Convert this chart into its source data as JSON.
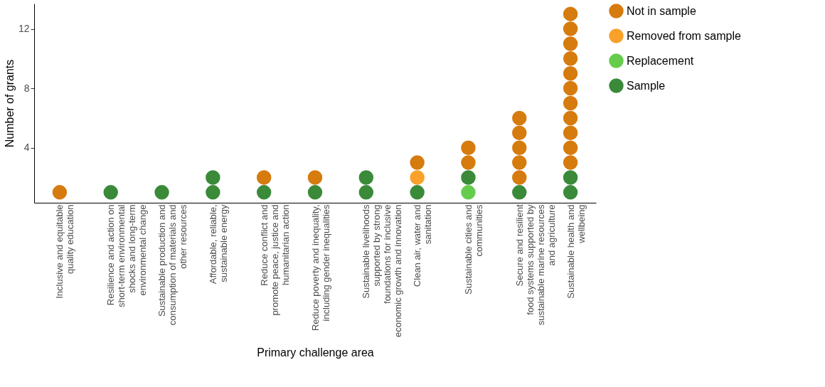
{
  "chart_data": {
    "type": "scatter",
    "xlabel": "Primary challenge area",
    "ylabel": "Number of grants",
    "categories": [
      "Inclusive and equitable\nquality education",
      "Resilience and action on\nshort-term environmental\nshocks and long-term\nenvironmental change",
      "Sustainable production and\nconsumption of materials and\nother resources",
      "Affordable, reliable,\nsustainable energy",
      "Reduce conflict and\npromote peace, justice and\nhumanitarian action",
      "Reduce poverty and inequality,\nincluding gender inequalities",
      "Sustainable livelihoods\nsupported by strong\nfoundations for inclusive\neconomic growth and innovation",
      "Clean air, water and\nsanitation",
      "Sustainable cities and\ncommunities",
      "Secure and resilient\nfood systems supported by\nsustainable marine resources\nand agriculture",
      "Sustainable health and\nwellbeing"
    ],
    "series": [
      {
        "name": "Not in sample",
        "color": "#d67b0e",
        "x": [
          "Inclusive and equitable\nquality education",
          "Reduce conflict and\npromote peace, justice and\nhumanitarian action",
          "Reduce poverty and inequality,\nincluding gender inequalities",
          "Clean air, water and\nsanitation",
          "Sustainable cities and\ncommunities",
          "Sustainable cities and\ncommunities",
          "Secure and resilient\nfood systems supported by\nsustainable marine resources\nand agriculture",
          "Secure and resilient\nfood systems supported by\nsustainable marine resources\nand agriculture",
          "Secure and resilient\nfood systems supported by\nsustainable marine resources\nand agriculture",
          "Secure and resilient\nfood systems supported by\nsustainable marine resources\nand agriculture",
          "Secure and resilient\nfood systems supported by\nsustainable marine resources\nand agriculture",
          "Sustainable health and\nwellbeing",
          "Sustainable health and\nwellbeing",
          "Sustainable health and\nwellbeing",
          "Sustainable health and\nwellbeing",
          "Sustainable health and\nwellbeing",
          "Sustainable health and\nwellbeing",
          "Sustainable health and\nwellbeing",
          "Sustainable health and\nwellbeing",
          "Sustainable health and\nwellbeing",
          "Sustainable health and\nwellbeing",
          "Sustainable health and\nwellbeing"
        ],
        "values": [
          1,
          2,
          2,
          3,
          3,
          4,
          2,
          3,
          4,
          5,
          6,
          3,
          4,
          5,
          6,
          7,
          8,
          9,
          10,
          11,
          12,
          13
        ]
      },
      {
        "name": "Removed from sample",
        "color": "#f9a12b",
        "x": [
          "Clean air, water and\nsanitation"
        ],
        "values": [
          2
        ]
      },
      {
        "name": "Replacement",
        "color": "#66cc4c",
        "x": [
          "Sustainable cities and\ncommunities"
        ],
        "values": [
          1
        ]
      },
      {
        "name": "Sample",
        "color": "#3a8a3a",
        "x": [
          "Resilience and action on\nshort-term environmental\nshocks and long-term\nenvironmental change",
          "Sustainable production and\nconsumption of materials and\nother resources",
          "Affordable, reliable,\nsustainable energy",
          "Affordable, reliable,\nsustainable energy",
          "Reduce conflict and\npromote peace, justice and\nhumanitarian action",
          "Reduce poverty and inequality,\nincluding gender inequalities",
          "Sustainable livelihoods\nsupported by strong\nfoundations for inclusive\neconomic growth and innovation",
          "Sustainable livelihoods\nsupported by strong\nfoundations for inclusive\neconomic growth and innovation",
          "Clean air, water and\nsanitation",
          "Sustainable cities and\ncommunities",
          "Secure and resilient\nfood systems supported by\nsustainable marine resources\nand agriculture",
          "Sustainable health and\nwellbeing",
          "Sustainable health and\nwellbeing"
        ],
        "values": [
          1,
          1,
          1,
          2,
          1,
          1,
          1,
          2,
          1,
          2,
          1,
          1,
          2
        ]
      }
    ],
    "ylim": [
      0.3,
      13.7
    ],
    "yticks": [
      4,
      8,
      12
    ],
    "grid": false,
    "legend": "right",
    "marker": "circle"
  }
}
